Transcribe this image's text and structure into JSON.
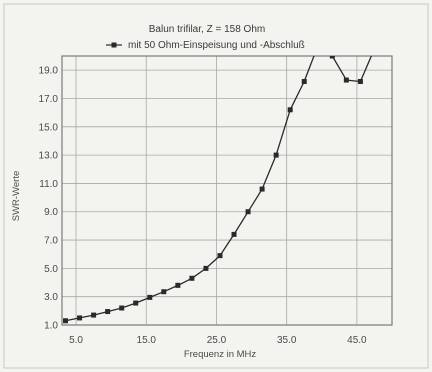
{
  "chart_data": {
    "type": "line",
    "title": "Balun trifilar, Z = 158 Ohm",
    "xlabel": "Frequenz in MHz",
    "ylabel": "SWR-Werte",
    "xlim": [
      3.0,
      50.0
    ],
    "ylim": [
      1.0,
      20.0
    ],
    "x_ticks": [
      "5.0",
      "15.0",
      "25.0",
      "35.0",
      "45.0"
    ],
    "y_ticks": [
      "1.0",
      "3.0",
      "5.0",
      "7.0",
      "9.0",
      "11.0",
      "13.0",
      "15.0",
      "17.0",
      "19.0"
    ],
    "grid": true,
    "legend_position": "top",
    "series": [
      {
        "name": "mit 50 Ohm-Einspeisung und -Abschluß",
        "color": "#2a2a2a",
        "marker": "square",
        "x": [
          3.5,
          5.5,
          7.5,
          9.5,
          11.5,
          13.5,
          15.5,
          17.5,
          19.5,
          21.5,
          23.5,
          25.5,
          27.5,
          29.5,
          31.5,
          33.5,
          35.5,
          37.5,
          39.5,
          41.5,
          43.5,
          45.5,
          47.5
        ],
        "y": [
          1.3,
          1.5,
          1.7,
          1.95,
          2.2,
          2.55,
          2.95,
          3.35,
          3.8,
          4.3,
          5.0,
          5.9,
          7.4,
          9.0,
          10.6,
          13.0,
          16.2,
          18.2,
          20.8,
          20.0,
          18.3,
          18.2,
          20.5
        ]
      }
    ]
  }
}
